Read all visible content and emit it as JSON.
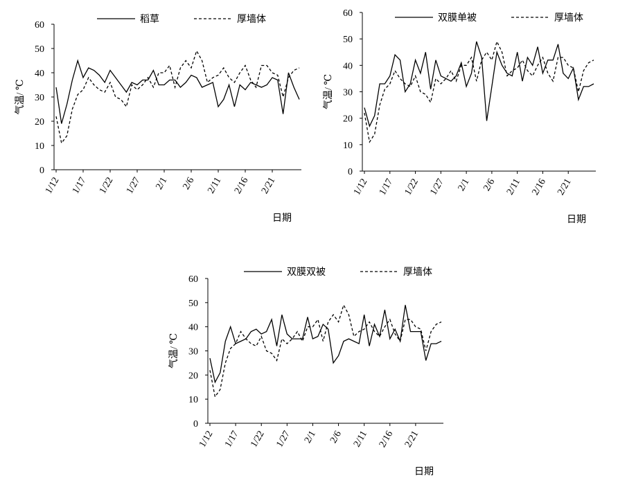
{
  "chart_data": [
    {
      "type": "line",
      "categories": [
        "1/12",
        null,
        null,
        null,
        null,
        "1/17",
        null,
        null,
        null,
        null,
        "1/22",
        null,
        null,
        null,
        null,
        "1/27",
        null,
        null,
        null,
        null,
        "2/1",
        null,
        null,
        null,
        null,
        "2/6",
        null,
        null,
        null,
        null,
        "2/11",
        null,
        null,
        null,
        null,
        "2/16",
        null,
        null,
        null,
        null,
        "2/21",
        null,
        null,
        null,
        null,
        null
      ],
      "series": [
        {
          "name": "稻草",
          "color": "#000000",
          "style": "solid",
          "values": [
            34,
            19,
            27,
            37,
            45,
            38,
            42,
            41,
            39,
            36,
            41,
            38,
            35,
            32,
            36,
            35,
            37,
            37,
            41,
            35,
            35,
            37,
            37,
            34,
            36,
            39,
            38,
            34,
            35,
            36,
            26,
            29,
            35,
            26,
            35,
            33,
            36,
            35,
            34,
            35,
            38,
            37,
            23,
            40,
            34,
            29
          ]
        },
        {
          "name": "厚墙体",
          "color": "#000000",
          "style": "dashed",
          "values": [
            22,
            11,
            14,
            25,
            31,
            33,
            38,
            35,
            33,
            32,
            36,
            30,
            29,
            26,
            35,
            33,
            35,
            38,
            34,
            40,
            40,
            43,
            34,
            42,
            45,
            42,
            49,
            45,
            36,
            38,
            39,
            42,
            38,
            36,
            40,
            43,
            37,
            34,
            43,
            43,
            40,
            39,
            30,
            38,
            41,
            42
          ]
        }
      ],
      "ylabel": "气温/ ℃",
      "xlabel": "日期",
      "ylim": [
        0,
        60
      ],
      "yticks": [
        0,
        10,
        20,
        30,
        40,
        50,
        60
      ],
      "grid": false
    },
    {
      "type": "line",
      "categories": [
        "1/12",
        null,
        null,
        null,
        null,
        "1/17",
        null,
        null,
        null,
        null,
        "1/22",
        null,
        null,
        null,
        null,
        "1/27",
        null,
        null,
        null,
        null,
        "2/1",
        null,
        null,
        null,
        null,
        "2/6",
        null,
        null,
        null,
        null,
        "2/11",
        null,
        null,
        null,
        null,
        "2/16",
        null,
        null,
        null,
        null,
        "2/21",
        null,
        null,
        null,
        null,
        null
      ],
      "series": [
        {
          "name": "双膜单被",
          "color": "#000000",
          "style": "solid",
          "values": [
            24,
            17,
            21,
            33,
            33,
            36,
            44,
            42,
            30,
            33,
            42,
            37,
            45,
            31,
            42,
            36,
            35,
            34,
            36,
            41,
            32,
            37,
            49,
            43,
            19,
            32,
            45,
            40,
            37,
            36,
            45,
            34,
            43,
            40,
            47,
            37,
            42,
            42,
            48,
            37,
            35,
            39,
            27,
            32,
            32,
            33
          ]
        },
        {
          "name": "厚墙体",
          "color": "#000000",
          "style": "dashed",
          "values": [
            22,
            11,
            14,
            25,
            31,
            33,
            38,
            35,
            33,
            32,
            36,
            30,
            29,
            26,
            35,
            33,
            35,
            38,
            34,
            40,
            40,
            43,
            34,
            42,
            45,
            42,
            49,
            45,
            36,
            38,
            39,
            42,
            38,
            36,
            40,
            43,
            37,
            34,
            43,
            43,
            40,
            39,
            30,
            38,
            41,
            42
          ]
        }
      ],
      "ylabel": "气温/ ℃",
      "xlabel": "日期",
      "ylim": [
        0,
        60
      ],
      "yticks": [
        0,
        10,
        20,
        30,
        40,
        50,
        60
      ],
      "grid": false
    },
    {
      "type": "line",
      "categories": [
        "1/12",
        null,
        null,
        null,
        null,
        "1/17",
        null,
        null,
        null,
        null,
        "1/22",
        null,
        null,
        null,
        null,
        "1/27",
        null,
        null,
        null,
        null,
        "2/1",
        null,
        null,
        null,
        null,
        "2/6",
        null,
        null,
        null,
        null,
        "2/11",
        null,
        null,
        null,
        null,
        "2/16",
        null,
        null,
        null,
        null,
        "2/21",
        null,
        null,
        null,
        null,
        null
      ],
      "series": [
        {
          "name": "双膜双被",
          "color": "#000000",
          "style": "solid",
          "values": [
            27,
            17,
            21,
            34,
            40,
            33,
            34,
            35,
            38,
            39,
            37,
            38,
            43,
            32,
            45,
            37,
            35,
            35,
            35,
            44,
            35,
            36,
            41,
            39,
            25,
            28,
            34,
            35,
            34,
            33,
            45,
            32,
            41,
            36,
            47,
            35,
            39,
            34,
            49,
            38,
            38,
            38,
            26,
            33,
            33,
            34
          ]
        },
        {
          "name": "厚墙体",
          "color": "#000000",
          "style": "dashed",
          "values": [
            22,
            11,
            14,
            25,
            31,
            33,
            38,
            35,
            33,
            32,
            36,
            30,
            29,
            26,
            35,
            33,
            35,
            38,
            34,
            40,
            40,
            43,
            34,
            42,
            45,
            42,
            49,
            45,
            36,
            38,
            39,
            42,
            38,
            36,
            40,
            43,
            37,
            34,
            43,
            43,
            40,
            39,
            30,
            38,
            41,
            42
          ]
        }
      ],
      "ylabel": "气温/ ℃",
      "xlabel": "日期",
      "ylim": [
        0,
        60
      ],
      "yticks": [
        0,
        10,
        20,
        30,
        40,
        50,
        60
      ],
      "grid": false
    }
  ]
}
